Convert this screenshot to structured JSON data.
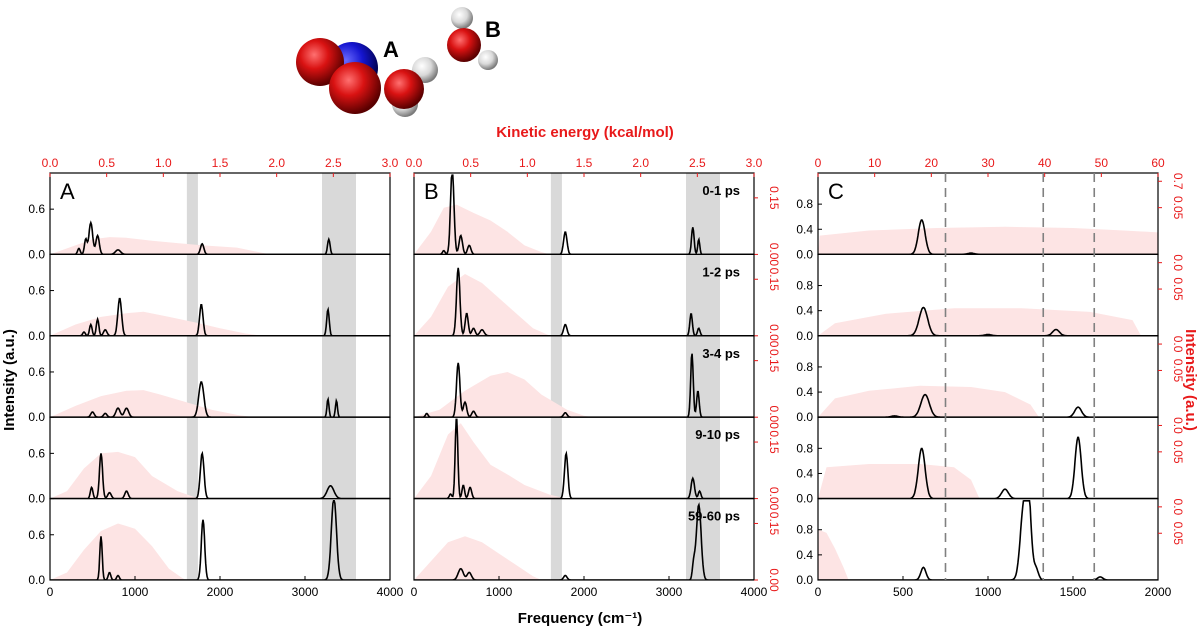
{
  "figure": {
    "molecule": {
      "label_a": "A",
      "label_b": "B"
    },
    "top_axis_title": "Kinetic energy (kcal/mol)",
    "bottom_axis_title": "Frequency (cm⁻¹)",
    "left_axis_title": "Intensity (a.u.)",
    "right_axis_title": "Intensity (a.u.)",
    "colors": {
      "spectrum": "#000000",
      "kinetic_fill": "#fde4e4",
      "accent_red": "#e8191a",
      "band": "#d9d9d9",
      "dashed_line": "#808080"
    }
  },
  "chart_data": [
    {
      "type": "line",
      "panel": "A",
      "x_range": [
        0,
        4000
      ],
      "x_ticks": [
        "0",
        "1000",
        "2000",
        "3000",
        "4000"
      ],
      "top_range": [
        0,
        3.0
      ],
      "top_ticks": [
        "0.0",
        "0.5",
        "1.0",
        "1.5",
        "2.0",
        "2.5",
        "3.0"
      ],
      "y_range": [
        0,
        1.0
      ],
      "y_ticks": [
        "0.0",
        "0.6"
      ],
      "shaded_bands": [
        [
          1610,
          1740
        ],
        [
          3200,
          3600
        ]
      ],
      "rows": [
        {
          "peaks": [
            [
              480,
              0.42,
              22
            ],
            [
              420,
              0.2,
              15
            ],
            [
              560,
              0.25,
              20
            ],
            [
              340,
              0.08,
              15
            ],
            [
              800,
              0.06,
              30
            ],
            [
              1790,
              0.14,
              20
            ],
            [
              3280,
              0.2,
              15
            ]
          ],
          "fill": [
            [
              0,
              0
            ],
            [
              200,
              0.08
            ],
            [
              500,
              0.2
            ],
            [
              700,
              0.23
            ],
            [
              900,
              0.22
            ],
            [
              1200,
              0.18
            ],
            [
              1500,
              0.15
            ],
            [
              1800,
              0.12
            ],
            [
              2200,
              0.09
            ],
            [
              2500,
              0.02
            ],
            [
              2600,
              0
            ]
          ]
        },
        {
          "peaks": [
            [
              820,
              0.5,
              22
            ],
            [
              560,
              0.22,
              15
            ],
            [
              480,
              0.15,
              15
            ],
            [
              400,
              0.05,
              15
            ],
            [
              650,
              0.08,
              20
            ],
            [
              1780,
              0.42,
              20
            ],
            [
              3270,
              0.35,
              15
            ]
          ],
          "fill": [
            [
              0,
              0
            ],
            [
              300,
              0.15
            ],
            [
              600,
              0.25
            ],
            [
              900,
              0.3
            ],
            [
              1100,
              0.32
            ],
            [
              1400,
              0.25
            ],
            [
              1700,
              0.18
            ],
            [
              2000,
              0.1
            ],
            [
              2300,
              0.03
            ],
            [
              2500,
              0
            ]
          ]
        },
        {
          "peaks": [
            [
              1780,
              0.47,
              30
            ],
            [
              800,
              0.12,
              25
            ],
            [
              900,
              0.12,
              25
            ],
            [
              500,
              0.07,
              20
            ],
            [
              650,
              0.05,
              20
            ],
            [
              3270,
              0.24,
              12
            ],
            [
              3370,
              0.22,
              12
            ]
          ],
          "fill": [
            [
              0,
              0
            ],
            [
              300,
              0.15
            ],
            [
              600,
              0.28
            ],
            [
              900,
              0.35
            ],
            [
              1100,
              0.36
            ],
            [
              1300,
              0.3
            ],
            [
              1600,
              0.2
            ],
            [
              1900,
              0.1
            ],
            [
              2200,
              0.03
            ],
            [
              2400,
              0
            ]
          ]
        },
        {
          "peaks": [
            [
              600,
              0.6,
              18
            ],
            [
              490,
              0.15,
              15
            ],
            [
              700,
              0.08,
              20
            ],
            [
              900,
              0.1,
              20
            ],
            [
              1790,
              0.6,
              22
            ],
            [
              3300,
              0.17,
              40
            ]
          ],
          "fill": [
            [
              0,
              0
            ],
            [
              200,
              0.1
            ],
            [
              400,
              0.4
            ],
            [
              600,
              0.6
            ],
            [
              800,
              0.62
            ],
            [
              1000,
              0.55
            ],
            [
              1200,
              0.3
            ],
            [
              1500,
              0.1
            ],
            [
              1700,
              0.02
            ],
            [
              1800,
              0
            ]
          ]
        },
        {
          "peaks": [
            [
              600,
              0.58,
              14
            ],
            [
              700,
              0.1,
              15
            ],
            [
              800,
              0.06,
              15
            ],
            [
              1800,
              0.8,
              20
            ],
            [
              3340,
              1.1,
              30
            ]
          ],
          "fill": [
            [
              0,
              0
            ],
            [
              200,
              0.1
            ],
            [
              400,
              0.4
            ],
            [
              600,
              0.65
            ],
            [
              800,
              0.75
            ],
            [
              1000,
              0.68
            ],
            [
              1200,
              0.45
            ],
            [
              1400,
              0.15
            ],
            [
              1550,
              0.03
            ],
            [
              1600,
              0
            ]
          ]
        }
      ]
    },
    {
      "type": "line",
      "panel": "B",
      "x_range": [
        0,
        4000
      ],
      "x_ticks": [
        "0",
        "1000",
        "2000",
        "3000",
        "4000"
      ],
      "top_range": [
        0,
        3.0
      ],
      "top_ticks": [
        "0.0",
        "0.5",
        "1.0",
        "1.5",
        "2.0",
        "2.5",
        "3.0"
      ],
      "y_range": [
        0,
        1.0
      ],
      "right_range": [
        0,
        0.2
      ],
      "right_ticks": [
        "0.00",
        "0.15"
      ],
      "shaded_bands": [
        [
          1610,
          1740
        ],
        [
          3200,
          3600
        ]
      ],
      "time_labels": [
        "0-1 ps",
        "1-2 ps",
        "3-4 ps",
        "9-10 ps",
        "59-60 ps"
      ],
      "rows": [
        {
          "peaks": [
            [
              450,
              1.15,
              20
            ],
            [
              550,
              0.25,
              20
            ],
            [
              650,
              0.12,
              20
            ],
            [
              350,
              0.05,
              15
            ],
            [
              1780,
              0.3,
              20
            ],
            [
              3280,
              0.36,
              15
            ],
            [
              3350,
              0.2,
              12
            ]
          ],
          "fill": [
            [
              0,
              0
            ],
            [
              200,
              0.3
            ],
            [
              350,
              0.62
            ],
            [
              500,
              0.66
            ],
            [
              700,
              0.55
            ],
            [
              900,
              0.45
            ],
            [
              1100,
              0.3
            ],
            [
              1300,
              0.12
            ],
            [
              1500,
              0.03
            ],
            [
              1600,
              0
            ]
          ]
        },
        {
          "peaks": [
            [
              520,
              0.9,
              20
            ],
            [
              620,
              0.3,
              18
            ],
            [
              700,
              0.1,
              20
            ],
            [
              800,
              0.08,
              25
            ],
            [
              1780,
              0.15,
              20
            ],
            [
              3260,
              0.3,
              15
            ],
            [
              3350,
              0.1,
              15
            ]
          ],
          "fill": [
            [
              0,
              0
            ],
            [
              200,
              0.25
            ],
            [
              400,
              0.65
            ],
            [
              600,
              0.82
            ],
            [
              800,
              0.7
            ],
            [
              1000,
              0.5
            ],
            [
              1200,
              0.3
            ],
            [
              1400,
              0.1
            ],
            [
              1600,
              0
            ]
          ]
        },
        {
          "peaks": [
            [
              520,
              0.72,
              20
            ],
            [
              600,
              0.2,
              20
            ],
            [
              700,
              0.08,
              20
            ],
            [
              150,
              0.05,
              15
            ],
            [
              1780,
              0.06,
              20
            ],
            [
              3270,
              0.85,
              15
            ],
            [
              3340,
              0.35,
              15
            ]
          ],
          "fill": [
            [
              0,
              0
            ],
            [
              300,
              0.1
            ],
            [
              600,
              0.35
            ],
            [
              900,
              0.55
            ],
            [
              1100,
              0.6
            ],
            [
              1300,
              0.5
            ],
            [
              1500,
              0.3
            ],
            [
              1800,
              0.1
            ],
            [
              2000,
              0.02
            ],
            [
              2100,
              0
            ]
          ]
        },
        {
          "peaks": [
            [
              500,
              1.12,
              15
            ],
            [
              580,
              0.18,
              15
            ],
            [
              660,
              0.15,
              18
            ],
            [
              430,
              0.06,
              15
            ],
            [
              1790,
              0.6,
              20
            ],
            [
              3280,
              0.27,
              20
            ],
            [
              3360,
              0.1,
              15
            ]
          ],
          "fill": [
            [
              0,
              0
            ],
            [
              200,
              0.3
            ],
            [
              400,
              0.85
            ],
            [
              550,
              1.0
            ],
            [
              700,
              0.75
            ],
            [
              900,
              0.45
            ],
            [
              1100,
              0.32
            ],
            [
              1300,
              0.18
            ],
            [
              1600,
              0.05
            ],
            [
              1800,
              0
            ]
          ]
        },
        {
          "peaks": [
            [
              550,
              0.15,
              30
            ],
            [
              650,
              0.1,
              25
            ],
            [
              1780,
              0.06,
              20
            ],
            [
              3350,
              1.0,
              28
            ],
            [
              3290,
              0.2,
              15
            ]
          ],
          "fill": [
            [
              0,
              0
            ],
            [
              200,
              0.25
            ],
            [
              400,
              0.5
            ],
            [
              600,
              0.58
            ],
            [
              800,
              0.5
            ],
            [
              1000,
              0.35
            ],
            [
              1200,
              0.2
            ],
            [
              1400,
              0.05
            ],
            [
              1500,
              0
            ]
          ]
        }
      ]
    },
    {
      "type": "line",
      "panel": "C",
      "x_range": [
        0,
        2000
      ],
      "x_ticks": [
        "0",
        "500",
        "1000",
        "1500",
        "2000"
      ],
      "top_range": [
        0,
        60
      ],
      "top_ticks": [
        "0",
        "10",
        "20",
        "30",
        "40",
        "50",
        "60"
      ],
      "y_range": [
        0,
        1.2
      ],
      "y_ticks": [
        "0.0",
        "0.4",
        "0.8"
      ],
      "right_range": [
        0,
        0.08
      ],
      "right_ticks": [
        "0.0",
        "0.05",
        "0.7"
      ],
      "right_ticks_upper": [
        "0.05"
      ],
      "dashed_lines_x": [
        750,
        1325,
        1625
      ],
      "rows": [
        {
          "peaks": [
            [
              610,
              0.55,
              20
            ],
            [
              900,
              0.02,
              20
            ]
          ],
          "fill": [
            [
              0,
              0
            ],
            [
              10,
              0.3
            ],
            [
              300,
              0.38
            ],
            [
              700,
              0.42
            ],
            [
              1100,
              0.44
            ],
            [
              1500,
              0.42
            ],
            [
              1800,
              0.38
            ],
            [
              2000,
              0.35
            ]
          ]
        },
        {
          "peaks": [
            [
              620,
              0.45,
              25
            ],
            [
              1400,
              0.1,
              20
            ],
            [
              1000,
              0.02,
              20
            ]
          ],
          "fill": [
            [
              0,
              0
            ],
            [
              100,
              0.2
            ],
            [
              400,
              0.35
            ],
            [
              800,
              0.44
            ],
            [
              1200,
              0.44
            ],
            [
              1600,
              0.38
            ],
            [
              1850,
              0.25
            ],
            [
              1900,
              0
            ]
          ]
        },
        {
          "peaks": [
            [
              630,
              0.36,
              25
            ],
            [
              1530,
              0.16,
              20
            ],
            [
              450,
              0.02,
              20
            ]
          ],
          "fill": [
            [
              0,
              0
            ],
            [
              100,
              0.3
            ],
            [
              300,
              0.42
            ],
            [
              600,
              0.5
            ],
            [
              900,
              0.48
            ],
            [
              1100,
              0.4
            ],
            [
              1250,
              0.2
            ],
            [
              1300,
              0
            ]
          ]
        },
        {
          "peaks": [
            [
              610,
              0.8,
              20
            ],
            [
              1100,
              0.15,
              20
            ],
            [
              1530,
              0.98,
              18
            ]
          ],
          "fill": [
            [
              0,
              0
            ],
            [
              50,
              0.5
            ],
            [
              300,
              0.55
            ],
            [
              600,
              0.55
            ],
            [
              800,
              0.5
            ],
            [
              900,
              0.3
            ],
            [
              950,
              0
            ]
          ]
        },
        {
          "peaks": [
            [
              620,
              0.2,
              15
            ],
            [
              1210,
              1.15,
              20
            ],
            [
              1240,
              1.1,
              15
            ],
            [
              1280,
              0.2,
              15
            ],
            [
              1660,
              0.05,
              15
            ]
          ],
          "fill": [
            [
              0,
              0
            ],
            [
              5,
              0.8
            ],
            [
              50,
              0.75
            ],
            [
              100,
              0.5
            ],
            [
              150,
              0.2
            ],
            [
              180,
              0
            ]
          ]
        }
      ]
    }
  ]
}
